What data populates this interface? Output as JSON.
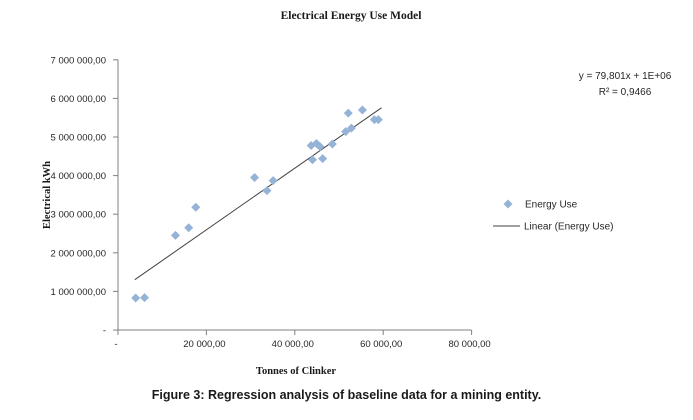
{
  "figure": {
    "caption": "Figure 3: Regression analysis of baseline data for a mining entity."
  },
  "chart_data": {
    "type": "scatter",
    "title": "Electrical Energy Use Model",
    "xlabel": "Tonnes of Clinker",
    "ylabel": "Electrical kWh",
    "xlim": [
      0,
      80000
    ],
    "ylim": [
      0,
      7000000
    ],
    "x_tick_interval": 20000,
    "y_tick_interval": 1000000,
    "x_tick_labels": [
      "-",
      "20 000,00",
      "40 000,00",
      "60 000,00",
      "80 000,00"
    ],
    "y_tick_labels": [
      "-",
      "1 000 000,00",
      "2 000 000,00",
      "3 000 000,00",
      "4 000 000,00",
      "5 000 000,00",
      "6 000 000,00",
      "7 000 000,00"
    ],
    "gridlines": false,
    "legend": {
      "position": "right",
      "entries": [
        {
          "label": "Energy Use",
          "type": "marker"
        },
        {
          "label": "Linear (Energy Use)",
          "type": "line"
        }
      ]
    },
    "annotations": {
      "equation": "y = 79,801x + 1E+06",
      "r_squared": "R² = 0,9466"
    },
    "series": [
      {
        "name": "Energy Use",
        "marker": "diamond",
        "color": "#95B3D7",
        "points": [
          [
            4000,
            830000
          ],
          [
            6000,
            840000
          ],
          [
            13000,
            2450000
          ],
          [
            16000,
            2650000
          ],
          [
            17600,
            3180000
          ],
          [
            30900,
            3950000
          ],
          [
            33700,
            3610000
          ],
          [
            35100,
            3870000
          ],
          [
            43700,
            4780000
          ],
          [
            44900,
            4830000
          ],
          [
            45700,
            4750000
          ],
          [
            48500,
            4820000
          ],
          [
            44000,
            4410000
          ],
          [
            46300,
            4440000
          ],
          [
            51500,
            5140000
          ],
          [
            52800,
            5230000
          ],
          [
            52100,
            5620000
          ],
          [
            55300,
            5700000
          ],
          [
            58000,
            5450000
          ],
          [
            58900,
            5450000
          ]
        ]
      },
      {
        "name": "Linear (Energy Use)",
        "type": "trendline",
        "color": "#404040",
        "x1": 3800,
        "y1": 1303000,
        "x2": 59600,
        "y2": 5756000
      }
    ],
    "colors": {
      "marker": "#95B3D7",
      "trendline": "#404040",
      "axis": "#808080",
      "text": "#262626"
    }
  }
}
